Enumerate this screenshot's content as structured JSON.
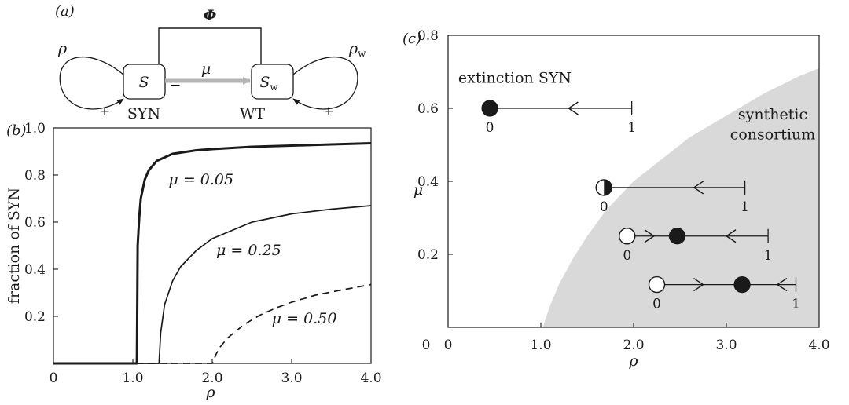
{
  "panel_a": {
    "letter": "(a)",
    "coupling_label": "Φ",
    "left_node": "S",
    "right_node": "S",
    "right_node_sub": "w",
    "left_caption": "SYN",
    "right_caption": "WT",
    "flow_label": "μ",
    "left_loop_label": "ρ",
    "right_loop_label": "ρ",
    "right_loop_sub": "w",
    "plus": "+",
    "minus": "−"
  },
  "chart_data": [
    {
      "type": "line",
      "panel": "(b)",
      "xlabel": "ρ",
      "ylabel": "fraction of SYN",
      "xlim": [
        0,
        4.0
      ],
      "ylim": [
        0,
        1.0
      ],
      "xticks": [
        "0",
        "1.0",
        "2.0",
        "3.0",
        "4.0"
      ],
      "yticks": [
        "0.2",
        "0.4",
        "0.6",
        "0.8",
        "1.0"
      ],
      "grid": false,
      "series": [
        {
          "name": "μ = 0.05",
          "style": "thick-solid",
          "onset": 1.05,
          "x": [
            0,
            1.05,
            1.06,
            1.08,
            1.1,
            1.15,
            1.2,
            1.3,
            1.5,
            1.8,
            2.0,
            2.5,
            3.0,
            3.5,
            4.0
          ],
          "y": [
            0,
            0,
            0.5,
            0.62,
            0.7,
            0.78,
            0.82,
            0.86,
            0.89,
            0.905,
            0.91,
            0.92,
            0.925,
            0.93,
            0.935
          ]
        },
        {
          "name": "μ = 0.25",
          "style": "solid",
          "onset": 1.33,
          "x": [
            0,
            1.33,
            1.35,
            1.4,
            1.5,
            1.6,
            1.8,
            2.0,
            2.5,
            3.0,
            3.5,
            4.0
          ],
          "y": [
            0,
            0,
            0.13,
            0.25,
            0.35,
            0.41,
            0.48,
            0.53,
            0.6,
            0.635,
            0.655,
            0.67
          ]
        },
        {
          "name": "μ = 0.50",
          "style": "dashed",
          "onset": 2.0,
          "x": [
            0,
            2.0,
            2.05,
            2.1,
            2.2,
            2.4,
            2.6,
            2.8,
            3.0,
            3.3,
            3.6,
            4.0
          ],
          "y": [
            0,
            0,
            0.04,
            0.07,
            0.11,
            0.165,
            0.205,
            0.235,
            0.26,
            0.29,
            0.31,
            0.335
          ]
        }
      ],
      "annotations": [
        {
          "text": "μ = 0.05",
          "x": 1.45,
          "y": 0.76
        },
        {
          "text": "μ = 0.25",
          "x": 2.05,
          "y": 0.46
        },
        {
          "text": "μ = 0.50",
          "x": 2.75,
          "y": 0.17
        }
      ]
    },
    {
      "type": "area",
      "panel": "(c)",
      "xlabel": "ρ",
      "ylabel": "μ",
      "xlim": [
        0,
        4.0
      ],
      "ylim": [
        0,
        0.8
      ],
      "xticks": [
        "0",
        "1.0",
        "2.0",
        "3.0",
        "4.0"
      ],
      "yticks": [
        "0.2",
        "0.4",
        "0.6",
        "0.8"
      ],
      "grid": false,
      "boundary": {
        "x": [
          1.02,
          1.1,
          1.2,
          1.35,
          1.5,
          1.7,
          2.0,
          2.3,
          2.6,
          3.0,
          3.4,
          3.8,
          4.0
        ],
        "y": [
          0.0,
          0.06,
          0.12,
          0.19,
          0.25,
          0.32,
          0.4,
          0.46,
          0.52,
          0.58,
          0.64,
          0.69,
          0.71
        ]
      },
      "region_labels": [
        {
          "text": "extinction SYN",
          "x": 0.72,
          "y": 0.67
        },
        {
          "text": "synthetic",
          "x": 3.5,
          "y": 0.57
        },
        {
          "text": "consortium",
          "x": 3.5,
          "y": 0.515
        }
      ],
      "phase_lines": [
        {
          "mu": 0.6,
          "x_start": 0.45,
          "x_end": 1.98,
          "zero_label": "0",
          "one_label": "1",
          "points": [
            {
              "x": 0.45,
              "kind": "stable"
            }
          ],
          "arrows": [
            {
              "x": 1.3,
              "dir": "left"
            }
          ]
        },
        {
          "mu": 0.383,
          "x_start": 1.68,
          "x_end": 3.2,
          "zero_label": "0",
          "one_label": "1",
          "points": [
            {
              "x": 1.68,
              "kind": "half"
            }
          ],
          "arrows": [
            {
              "x": 2.65,
              "dir": "left"
            }
          ]
        },
        {
          "mu": 0.25,
          "x_start": 1.93,
          "x_end": 3.45,
          "zero_label": "0",
          "one_label": "1",
          "points": [
            {
              "x": 1.93,
              "kind": "unstable"
            },
            {
              "x": 2.47,
              "kind": "stable"
            }
          ],
          "arrows": [
            {
              "x": 2.22,
              "dir": "right"
            },
            {
              "x": 3.0,
              "dir": "left"
            }
          ]
        },
        {
          "mu": 0.117,
          "x_start": 2.25,
          "x_end": 3.75,
          "zero_label": "0",
          "one_label": "1",
          "points": [
            {
              "x": 2.25,
              "kind": "unstable"
            },
            {
              "x": 3.17,
              "kind": "stable"
            }
          ],
          "arrows": [
            {
              "x": 2.75,
              "dir": "right"
            },
            {
              "x": 3.55,
              "dir": "left"
            }
          ]
        }
      ]
    }
  ]
}
